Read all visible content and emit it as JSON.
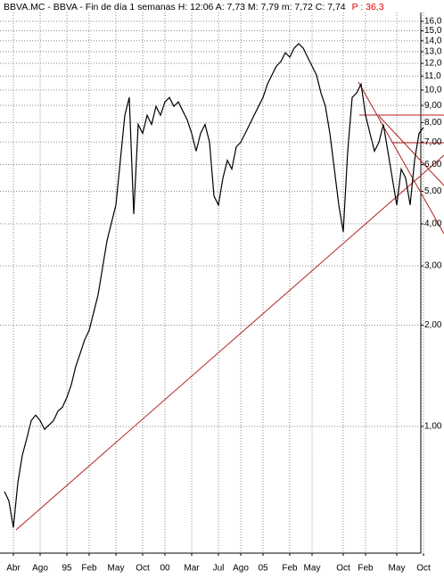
{
  "chart_data": {
    "type": "line",
    "title": "BBVA.MC - BBVA - Fin de día 1 semanas H: 12:06  A: 7,73  M: 7,79  m: 7,72  C: 7,74",
    "change_label": "P : 36,3",
    "change_color": "#e00000",
    "color": "#000000",
    "y_scale": "log",
    "grid": true,
    "ylim": [
      0.42,
      17.0
    ],
    "yticks": [
      {
        "value": 16,
        "label": "16,0"
      },
      {
        "value": 15,
        "label": "15,0"
      },
      {
        "value": 14,
        "label": "14,0"
      },
      {
        "value": 13,
        "label": "13,0"
      },
      {
        "value": 12,
        "label": "12,0"
      },
      {
        "value": 11,
        "label": "11,0"
      },
      {
        "value": 10,
        "label": "10,0"
      },
      {
        "value": 9,
        "label": "9,00"
      },
      {
        "value": 8,
        "label": "8,00"
      },
      {
        "value": 7,
        "label": "7,00"
      },
      {
        "value": 6,
        "label": "6,00"
      },
      {
        "value": 5,
        "label": "5,00"
      },
      {
        "value": 4,
        "label": "4,00"
      },
      {
        "value": 3,
        "label": "3,00"
      },
      {
        "value": 2,
        "label": "2,00"
      },
      {
        "value": 1,
        "label": "1,00"
      }
    ],
    "categories": [
      null,
      null,
      "Abr",
      null,
      null,
      null,
      null,
      null,
      "Ago",
      null,
      null,
      null,
      null,
      null,
      "95",
      null,
      null,
      null,
      null,
      "Feb",
      null,
      null,
      null,
      null,
      null,
      "May",
      null,
      null,
      null,
      null,
      null,
      "Oct",
      null,
      null,
      null,
      null,
      "00",
      null,
      null,
      null,
      null,
      null,
      "Mar",
      null,
      null,
      null,
      null,
      null,
      "Jul",
      null,
      null,
      null,
      null,
      "Ago",
      null,
      null,
      null,
      null,
      "05",
      null,
      null,
      null,
      null,
      null,
      "Feb",
      null,
      null,
      null,
      null,
      "May",
      null,
      null,
      null,
      null,
      null,
      null,
      "Oct",
      null,
      null,
      null,
      null,
      "Feb",
      null,
      null,
      null,
      null,
      null,
      null,
      "May",
      null,
      null,
      null,
      null,
      null,
      "Oct"
    ],
    "values": [
      0.64,
      0.6,
      0.5,
      0.68,
      0.82,
      0.92,
      1.04,
      1.08,
      1.04,
      0.98,
      1.01,
      1.04,
      1.11,
      1.14,
      1.22,
      1.33,
      1.51,
      1.65,
      1.81,
      1.93,
      2.18,
      2.46,
      2.96,
      3.56,
      4.03,
      4.55,
      6.18,
      8.41,
      9.5,
      4.28,
      7.9,
      7.43,
      8.41,
      7.9,
      8.94,
      8.41,
      9.22,
      9.5,
      8.94,
      9.22,
      8.67,
      8.15,
      7.43,
      6.58,
      7.43,
      7.9,
      6.99,
      4.84,
      4.55,
      5.47,
      6.18,
      5.82,
      6.78,
      6.99,
      7.43,
      7.9,
      8.41,
      8.94,
      9.5,
      10.42,
      11.08,
      11.78,
      12.15,
      12.91,
      12.53,
      13.32,
      13.73,
      13.32,
      12.53,
      11.78,
      11.08,
      9.8,
      8.94,
      7.43,
      5.82,
      4.55,
      3.79,
      6.58,
      9.5,
      9.8,
      10.42,
      8.41,
      7.43,
      6.58,
      6.99,
      7.9,
      6.58,
      5.47,
      4.55,
      5.82,
      5.47,
      4.55,
      6.18,
      7.43,
      7.74
    ]
  }
}
